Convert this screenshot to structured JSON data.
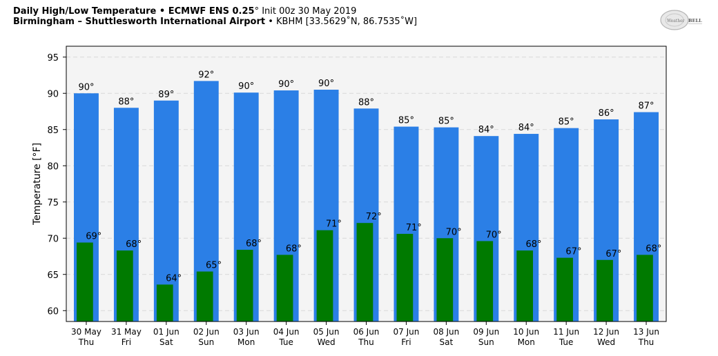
{
  "header": {
    "line1_bold": "Daily High/Low Temperature • ECMWF ENS 0.25",
    "line1_deg": "°",
    "line1_rest": " Init 00z 30 May 2019",
    "line2_bold": "Birmingham – Shuttlesworth International Airport",
    "line2_rest": " • KBHM [33.5629˚N, 86.7535˚W]"
  },
  "logo": {
    "text_left": "Weather",
    "text_right": "BELL",
    "icon": "weatherbell-logo"
  },
  "colors": {
    "high_bar": "#2b7fe6",
    "low_bar": "#007a00",
    "plot_bg": "#f4f4f4",
    "grid": "#d8d8d8"
  },
  "chart_data": {
    "type": "bar",
    "ylabel": "Temperature [°F]",
    "ylim": [
      58.5,
      96.5
    ],
    "yticks": [
      60,
      65,
      70,
      75,
      80,
      85,
      90,
      95
    ],
    "grid": true,
    "categories": [
      [
        "30 May",
        "Thu"
      ],
      [
        "31 May",
        "Fri"
      ],
      [
        "01 Jun",
        "Sat"
      ],
      [
        "02 Jun",
        "Sun"
      ],
      [
        "03 Jun",
        "Mon"
      ],
      [
        "04 Jun",
        "Tue"
      ],
      [
        "05 Jun",
        "Wed"
      ],
      [
        "06 Jun",
        "Thu"
      ],
      [
        "07 Jun",
        "Fri"
      ],
      [
        "08 Jun",
        "Sat"
      ],
      [
        "09 Jun",
        "Sun"
      ],
      [
        "10 Jun",
        "Mon"
      ],
      [
        "11 Jun",
        "Tue"
      ],
      [
        "12 Jun",
        "Wed"
      ],
      [
        "13 Jun",
        "Thu"
      ]
    ],
    "series": [
      {
        "values": [
          90.0,
          88.0,
          89.0,
          91.7,
          90.1,
          90.4,
          90.5,
          87.9,
          85.4,
          85.3,
          84.1,
          84.4,
          85.2,
          86.4,
          87.4
        ],
        "labels": [
          "90°",
          "88°",
          "89°",
          "92°",
          "90°",
          "90°",
          "90°",
          "88°",
          "85°",
          "85°",
          "84°",
          "84°",
          "85°",
          "86°",
          "87°"
        ]
      },
      {
        "values": [
          69.4,
          68.3,
          63.6,
          65.4,
          68.4,
          67.7,
          71.1,
          72.1,
          70.6,
          70.0,
          69.6,
          68.3,
          67.3,
          67.0,
          67.7
        ],
        "labels": [
          "69°",
          "68°",
          "64°",
          "65°",
          "68°",
          "68°",
          "71°",
          "72°",
          "71°",
          "70°",
          "70°",
          "68°",
          "67°",
          "67°",
          "68°"
        ]
      }
    ]
  }
}
